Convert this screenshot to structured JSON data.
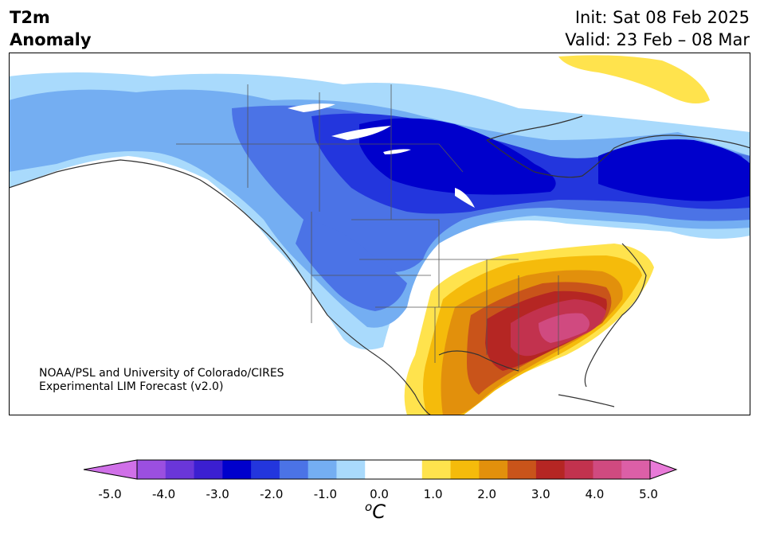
{
  "header": {
    "title_line1": "T2m",
    "title_line2": "Anomaly",
    "init_text": "Init: Sat 08 Feb 2025",
    "valid_text": "Valid: 23 Feb – 08 Mar"
  },
  "credit": {
    "line1": "NOAA/PSL and University of Colorado/CIRES",
    "line2": "Experimental LIM Forecast (v2.0)"
  },
  "colorbar": {
    "unit_prefix": "o",
    "unit_main": "C",
    "ticks": [
      "-5.0",
      "-4.0",
      "-3.0",
      "-2.0",
      "-1.0",
      "0.0",
      "1.0",
      "2.0",
      "3.0",
      "4.0",
      "5.0"
    ],
    "bins": [
      {
        "color": "#9b4fe0"
      },
      {
        "color": "#6a36d9"
      },
      {
        "color": "#3b1fd1"
      },
      {
        "color": "#0000cc"
      },
      {
        "color": "#2336dd"
      },
      {
        "color": "#4b73e6"
      },
      {
        "color": "#74aef2"
      },
      {
        "color": "#a9dafc"
      },
      {
        "color": "#ffffff"
      },
      {
        "color": "#ffffff"
      },
      {
        "color": "#ffe34d"
      },
      {
        "color": "#f5bb0b"
      },
      {
        "color": "#e2900c"
      },
      {
        "color": "#c9541a"
      },
      {
        "color": "#b52623"
      },
      {
        "color": "#c2324e"
      },
      {
        "color": "#d04a80"
      },
      {
        "color": "#dc5fa7"
      }
    ],
    "under_color": "#d070e8",
    "over_color": "#e87ad8"
  }
}
